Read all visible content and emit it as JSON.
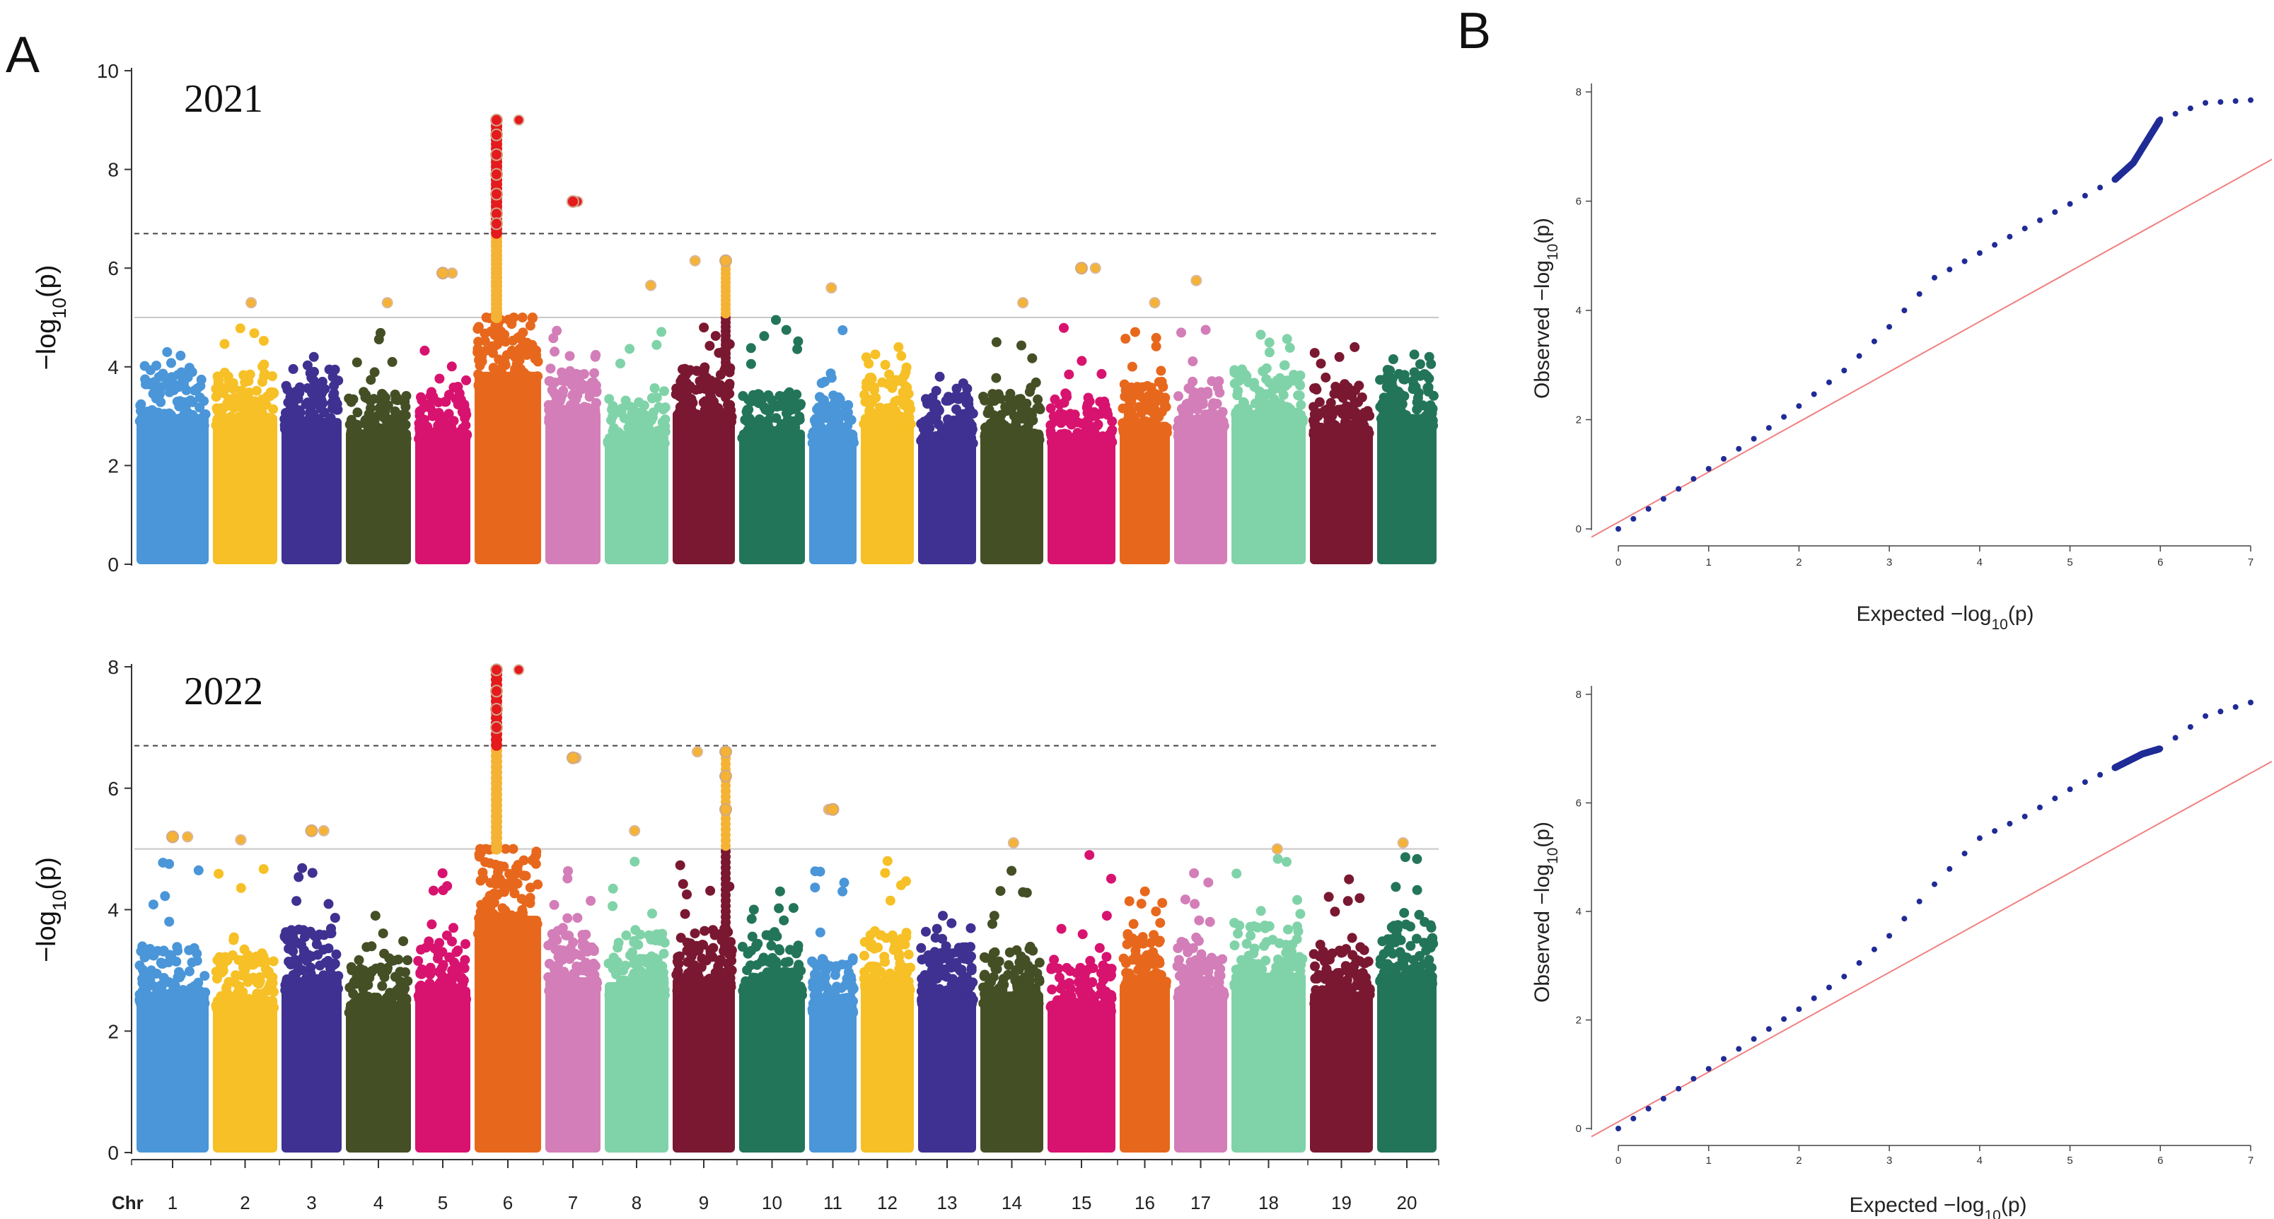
{
  "panels": {
    "a_label": "A",
    "b_label": "B"
  },
  "chart_data": [
    {
      "type": "scatter",
      "name": "manhattan-2021",
      "title": "2021",
      "ylabel": "−log10(p)",
      "ylim": [
        0,
        10
      ],
      "yticks": [
        0,
        2,
        4,
        6,
        8,
        10
      ],
      "suggestive_line": 5.0,
      "significance_line": 6.7,
      "xlabel_prefix": "Chr",
      "chromosomes": [
        "1",
        "2",
        "3",
        "4",
        "5",
        "6",
        "7",
        "8",
        "9",
        "10",
        "11",
        "12",
        "13",
        "14",
        "15",
        "16",
        "17",
        "18",
        "19",
        "20"
      ],
      "chromosome_colors": [
        "#4a96d8",
        "#f6c026",
        "#3f3191",
        "#454f25",
        "#d8136f",
        "#e7681d",
        "#d37eb8",
        "#80d3a8",
        "#7a1831",
        "#237559",
        "#4a96d8",
        "#f6c026",
        "#3f3191",
        "#454f25",
        "#d8136f",
        "#e7681d",
        "#d37eb8",
        "#80d3a8",
        "#7a1831",
        "#237559"
      ],
      "chromosome_bulk_max": [
        3.9,
        3.9,
        3.8,
        3.5,
        3.5,
        5.0,
        4.0,
        3.4,
        4.0,
        3.5,
        3.4,
        3.9,
        3.4,
        3.5,
        3.4,
        3.7,
        3.6,
        4.0,
        3.6,
        3.9
      ],
      "chromosome_top_loci": [
        4.3,
        5.3,
        4.2,
        5.3,
        5.9,
        9.0,
        7.35,
        5.65,
        6.15,
        4.95,
        5.6,
        4.4,
        3.8,
        5.3,
        6.0,
        5.3,
        5.75,
        4.65,
        4.4,
        4.25
      ],
      "peak_points": [
        {
          "chr": "6",
          "y": 9.0
        },
        {
          "chr": "6",
          "y": 8.7
        },
        {
          "chr": "6",
          "y": 8.3
        },
        {
          "chr": "6",
          "y": 7.9
        },
        {
          "chr": "6",
          "y": 7.5
        },
        {
          "chr": "6",
          "y": 7.1
        },
        {
          "chr": "6",
          "y": 6.9
        },
        {
          "chr": "7",
          "y": 7.35
        },
        {
          "chr": "9",
          "y": 6.15
        },
        {
          "chr": "15",
          "y": 6.0
        },
        {
          "chr": "5",
          "y": 5.9
        }
      ]
    },
    {
      "type": "scatter",
      "name": "manhattan-2022",
      "title": "2022",
      "ylabel": "−log10(p)",
      "ylim": [
        0,
        8
      ],
      "yticks": [
        0,
        2,
        4,
        6,
        8
      ],
      "suggestive_line": 5.0,
      "significance_line": 6.7,
      "xlabel_prefix": "Chr",
      "chromosomes": [
        "1",
        "2",
        "3",
        "4",
        "5",
        "6",
        "7",
        "8",
        "9",
        "10",
        "11",
        "12",
        "13",
        "14",
        "15",
        "16",
        "17",
        "18",
        "19",
        "20"
      ],
      "chromosome_colors": [
        "#4a96d8",
        "#f6c026",
        "#3f3191",
        "#454f25",
        "#d8136f",
        "#e7681d",
        "#d37eb8",
        "#80d3a8",
        "#7a1831",
        "#237559",
        "#4a96d8",
        "#f6c026",
        "#3f3191",
        "#454f25",
        "#d8136f",
        "#e7681d",
        "#d37eb8",
        "#80d3a8",
        "#7a1831",
        "#237559"
      ],
      "chromosome_bulk_max": [
        3.4,
        3.3,
        3.7,
        3.2,
        3.5,
        5.0,
        3.7,
        3.6,
        3.7,
        3.6,
        3.2,
        3.6,
        3.4,
        3.4,
        3.2,
        3.6,
        3.5,
        3.8,
        3.4,
        3.8
      ],
      "chromosome_top_loci": [
        5.2,
        5.15,
        5.3,
        3.9,
        4.6,
        7.95,
        6.5,
        5.3,
        6.6,
        4.3,
        5.65,
        4.8,
        3.9,
        5.1,
        4.9,
        4.3,
        4.6,
        5.0,
        4.5,
        5.1
      ],
      "peak_points": [
        {
          "chr": "6",
          "y": 7.95
        },
        {
          "chr": "6",
          "y": 7.6
        },
        {
          "chr": "6",
          "y": 7.3
        },
        {
          "chr": "6",
          "y": 7.0
        },
        {
          "chr": "7",
          "y": 6.5
        },
        {
          "chr": "9",
          "y": 6.6
        },
        {
          "chr": "9",
          "y": 6.2
        },
        {
          "chr": "9",
          "y": 5.65
        },
        {
          "chr": "11",
          "y": 5.65
        },
        {
          "chr": "3",
          "y": 5.3
        },
        {
          "chr": "1",
          "y": 5.2
        }
      ]
    },
    {
      "type": "scatter",
      "name": "qq-2021",
      "xlabel": "Expected −log10(p)",
      "ylabel": "Observed −log10(p)",
      "xlim": [
        0,
        7
      ],
      "ylim": [
        0,
        8
      ],
      "xticks": [
        0,
        1,
        2,
        3,
        4,
        5,
        6,
        7
      ],
      "yticks": [
        0,
        2,
        4,
        6,
        8
      ],
      "reference_line": "y = x",
      "series": [
        {
          "name": "observed",
          "x": [
            0,
            0.5,
            1,
            1.5,
            2,
            2.5,
            3,
            3.5,
            4,
            4.5,
            5,
            5.5,
            5.7,
            6.0,
            6.5,
            7.0
          ],
          "y": [
            0,
            0.55,
            1.1,
            1.65,
            2.25,
            2.9,
            3.7,
            4.6,
            5.05,
            5.5,
            5.95,
            6.4,
            6.7,
            7.5,
            7.8,
            7.85
          ]
        }
      ]
    },
    {
      "type": "scatter",
      "name": "qq-2022",
      "xlabel": "Expected −log10(p)",
      "ylabel": "Observed −log10(p)",
      "xlim": [
        0,
        7
      ],
      "ylim": [
        0,
        8
      ],
      "xticks": [
        0,
        1,
        2,
        3,
        4,
        5,
        6,
        7
      ],
      "yticks": [
        0,
        2,
        4,
        6,
        8
      ],
      "reference_line": "y = x",
      "series": [
        {
          "name": "observed",
          "x": [
            0,
            0.5,
            1,
            1.5,
            2,
            2.5,
            3,
            3.5,
            4,
            4.5,
            5,
            5.5,
            5.8,
            6.0,
            6.5,
            7.0
          ],
          "y": [
            0,
            0.55,
            1.1,
            1.65,
            2.2,
            2.8,
            3.55,
            4.5,
            5.35,
            5.75,
            6.25,
            6.65,
            6.9,
            7.0,
            7.6,
            7.85
          ]
        }
      ]
    }
  ]
}
